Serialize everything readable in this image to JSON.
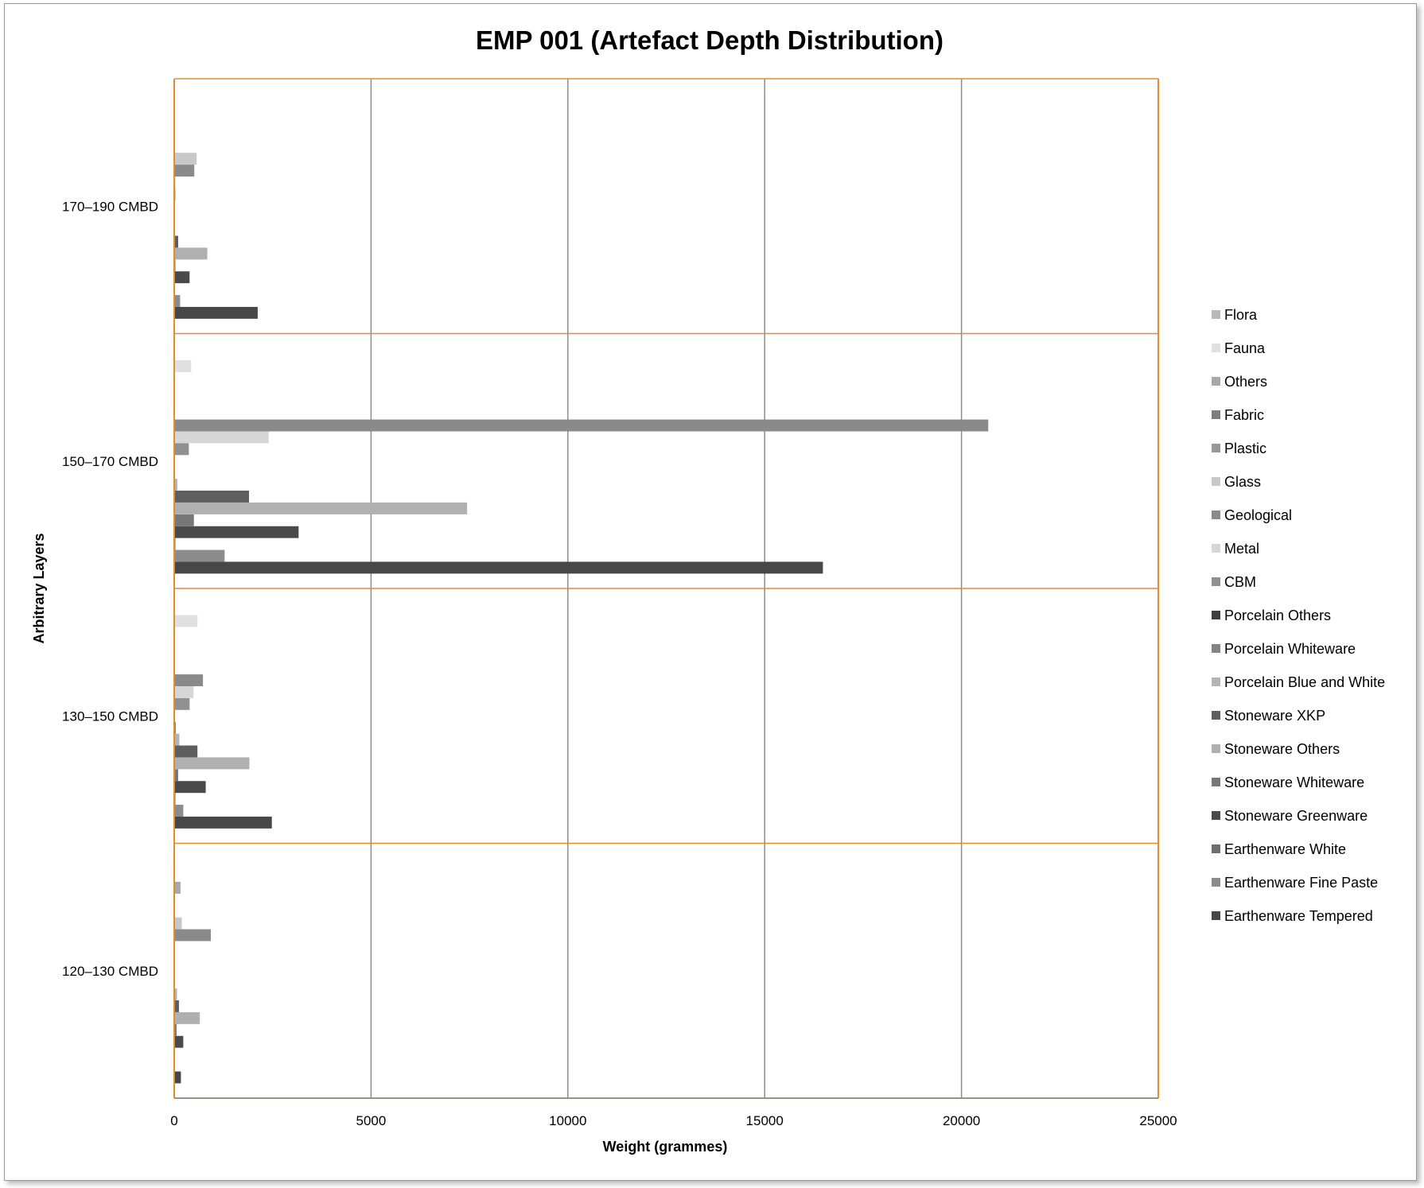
{
  "chart_data": {
    "type": "bar",
    "orientation": "horizontal",
    "title": "EMP 001 (Artefact Depth Distribution)",
    "xlabel": "Weight (grammes)",
    "ylabel": "Arbitrary Layers",
    "xlim": [
      0,
      25000
    ],
    "xticks": [
      "0",
      "5000",
      "10000",
      "15000",
      "20000",
      "25000"
    ],
    "grid": "vertical",
    "legend": "right",
    "categories": [
      "120–130 CMBD",
      "130–150 CMBD",
      "150–170 CMBD",
      "170–190 CMBD"
    ],
    "series": [
      {
        "name": "Earthenware Tempered",
        "color": "#474747",
        "values": [
          170,
          2480,
          16480,
          2120
        ]
      },
      {
        "name": "Earthenware Fine Paste",
        "color": "#8c8c8c",
        "values": [
          20,
          230,
          1280,
          150
        ]
      },
      {
        "name": "Earthenware White",
        "color": "#6e6e6e",
        "values": [
          10,
          30,
          30,
          10
        ]
      },
      {
        "name": "Stoneware Greenware",
        "color": "#4a4a4a",
        "values": [
          230,
          800,
          3160,
          390
        ]
      },
      {
        "name": "Stoneware Whiteware",
        "color": "#777777",
        "values": [
          60,
          100,
          500,
          30
        ]
      },
      {
        "name": "Stoneware Others",
        "color": "#b0b0b0",
        "values": [
          650,
          1910,
          7440,
          840
        ]
      },
      {
        "name": "Stoneware XKP",
        "color": "#5e5e5e",
        "values": [
          120,
          590,
          1900,
          100
        ]
      },
      {
        "name": "Porcelain Blue and White",
        "color": "#b4b4b4",
        "values": [
          70,
          130,
          80,
          10
        ]
      },
      {
        "name": "Porcelain Whiteware",
        "color": "#848484",
        "values": [
          20,
          40,
          20,
          10
        ]
      },
      {
        "name": "Porcelain Others",
        "color": "#3f3f3f",
        "values": [
          10,
          10,
          10,
          10
        ]
      },
      {
        "name": "CBM",
        "color": "#909090",
        "values": [
          10,
          390,
          370,
          30
        ]
      },
      {
        "name": "Metal",
        "color": "#d6d6d6",
        "values": [
          10,
          490,
          2400,
          30
        ]
      },
      {
        "name": "Geological",
        "color": "#8a8a8a",
        "values": [
          930,
          730,
          20680,
          510
        ]
      },
      {
        "name": "Glass",
        "color": "#c8c8c8",
        "values": [
          190,
          10,
          10,
          570
        ]
      },
      {
        "name": "Plastic",
        "color": "#989898",
        "values": [
          10,
          10,
          10,
          10
        ]
      },
      {
        "name": "Fabric",
        "color": "#7e7e7e",
        "values": [
          10,
          10,
          10,
          10
        ]
      },
      {
        "name": "Others",
        "color": "#a8a8a8",
        "values": [
          160,
          10,
          10,
          10
        ]
      },
      {
        "name": "Fauna",
        "color": "#e0e0e0",
        "values": [
          10,
          590,
          430,
          10
        ]
      },
      {
        "name": "Flora",
        "color": "#b8b8b8",
        "values": [
          10,
          10,
          10,
          10
        ]
      }
    ]
  }
}
